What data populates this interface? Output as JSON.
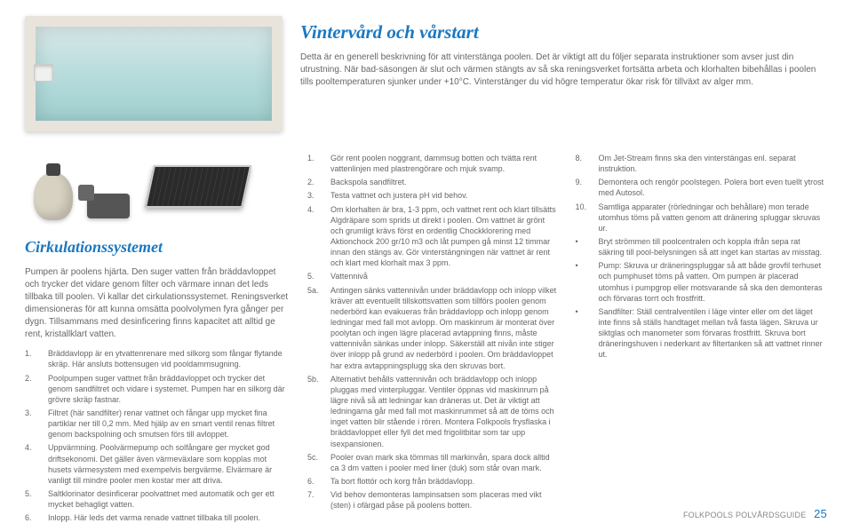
{
  "colors": {
    "accent": "#1a78c2",
    "body_text": "#666"
  },
  "title": "Vintervård och vårstart",
  "intro": "Detta är en generell beskrivning för att vinterstänga poolen. Det är viktigt att du följer separata instruktioner som avser just din utrustning. När bad-säsongen är slut och värmen stängts av så ska reningsverket fortsätta arbeta och klorhalten bibehållas i poolen tills pooltemperaturen sjunker under +10°C. Vinterstänger du vid högre temperatur ökar risk för tillväxt av alger mm.",
  "left": {
    "title": "Cirkulationssystemet",
    "body": "Pumpen är poolens hjärta. Den suger vatten från bräddavloppet och trycker det vidare genom filter och värmare innan det leds tillbaka till poolen. Vi kallar det cirkulationssystemet. Reningsverket dimensioneras för att kunna omsätta poolvolymen fyra gånger per dygn. Tillsammans med desinficering finns kapacitet att alltid ge rent, kristallklart vatten.",
    "items": [
      {
        "n": "1.",
        "t": "Bräddavlopp är en ytvattenrenare med silkorg som fångar flytande skräp. Här ansluts bottensugen vid pooldammsugning."
      },
      {
        "n": "2.",
        "t": "Poolpumpen suger vattnet från bräddavloppet och trycker det genom sandfiltret och vidare i systemet. Pumpen har en silkorg där grövre skräp fastnar."
      },
      {
        "n": "3.",
        "t": "Filtret (här sandfilter) renar vattnet och fångar upp mycket fina partiklar ner till 0,2 mm. Med hjälp av en smart ventil renas filtret genom backspolning och smutsen förs till avloppet."
      },
      {
        "n": "4.",
        "t": "Uppvärmning. Poolvärmepump och solfångare ger mycket god driftsekonomi. Det gäller även värmeväxlare som kopplas mot husets värmesystem med exempelvis bergvärme. Elvärmare är vanligt till mindre pooler men kostar mer att driva."
      },
      {
        "n": "5.",
        "t": "Saltklorinator desinficerar poolvattnet med automatik och ger ett mycket behagligt vatten."
      },
      {
        "n": "6.",
        "t": "Inlopp. Här leds det varma renade vattnet tillbaka till poolen."
      }
    ]
  },
  "mid": {
    "items": [
      {
        "n": "1.",
        "t": "Gör rent poolen noggrant, dammsug botten och tvätta rent vattenlinjen med plastrengörare och mjuk svamp."
      },
      {
        "n": "2.",
        "t": "Backspola sandfiltret."
      },
      {
        "n": "3.",
        "t": "Testa vattnet och justera pH vid behov."
      },
      {
        "n": "4.",
        "t": "Om klorhalten är bra, 1-3 ppm, och vattnet rent och klart tillsätts Algdräpare som sprids ut direkt i poolen. Om vattnet är grönt och grumligt krävs först en ordentlig Chockklorering med Aktionchock 200 gr/10 m3 och låt pumpen gå minst 12 timmar innan den stängs av. Gör vinterstängningen när vattnet är rent och klart med klorhalt max 3 ppm."
      },
      {
        "n": "5.",
        "t": "Vattennivå"
      },
      {
        "n": "5a.",
        "t": "Antingen sänks vattennivån under bräddavlopp och inlopp vilket kräver att eventuellt tillskottsvatten som tillförs poolen genom nederbörd kan evakueras från bräddavlopp och inlopp genom ledningar med fall mot avlopp. Om maskinrum är monterat över poolytan och ingen lägre placerad avtappning finns, måste vattennivån sänkas under inlopp. Säkerställ att nivån inte stiger över inlopp på grund av nederbörd i poolen. Om bräddavloppet har extra avtappningsplugg ska den skruvas bort."
      },
      {
        "n": "5b.",
        "t": "Alternativt behålls vattennivån och bräddavlopp och inlopp pluggas med vinterpluggar. Ventiler öppnas vid maskinrum på lägre nivå så att ledningar kan dräneras ut. Det är viktigt att ledningarna går med fall mot maskinrummet så att de töms och inget vatten blir stående i rören. Montera Folkpools frysflaska i bräddavloppet eller fyll det med frigolitbitar som tar upp isexpansionen."
      },
      {
        "n": "5c.",
        "t": "Pooler ovan mark ska tömmas till markinvån, spara dock alltid ca 3 dm vatten i pooler med liner (duk) som står ovan mark."
      },
      {
        "n": "6.",
        "t": "Ta bort flottör och korg från bräddavlopp."
      },
      {
        "n": "7.",
        "t": "Vid behov demonteras lampinsatsen som placeras med vikt (sten) i ofärgad påse på poolens botten."
      }
    ]
  },
  "right": {
    "items": [
      {
        "n": "8.",
        "t": "Om Jet-Stream finns ska den vinterstängas enl. separat instruktion."
      },
      {
        "n": "9.",
        "t": "Demontera och rengör poolstegen. Polera bort even tuellt ytrost med Autosol."
      },
      {
        "n": "10.",
        "t": "Samtliga apparater (rörledningar och behållare) mon terade utomhus töms på vatten genom att dränering spluggar skruvas ur."
      },
      {
        "n": "•",
        "t": "Bryt strömmen till poolcentralen och koppla ifrån sepa rat säkring till pool-belysningen så att inget kan startas av misstag."
      },
      {
        "n": "•",
        "t": "Pump: Skruva ur dräneringspluggar så att både grovfil terhuset och pumphuset töms på vatten. Om pumpen är placerad utomhus i pumpgrop eller motsvarande så ska den demonteras och förvaras torrt och frostfritt."
      },
      {
        "n": "•",
        "t": "Sandfilter: Ställ centralventilen i läge vinter eller om det läget inte finns så ställs handtaget mellan två fasta lägen. Skruva ur siktglas och manometer som förvaras frostfritt. Skruva bort dräneringshuven i nederkant av filtertanken så att vattnet rinner ut."
      }
    ]
  },
  "footer": {
    "label": "FOLKPOOLS POLVÅRDSGUIDE",
    "page": "25"
  }
}
